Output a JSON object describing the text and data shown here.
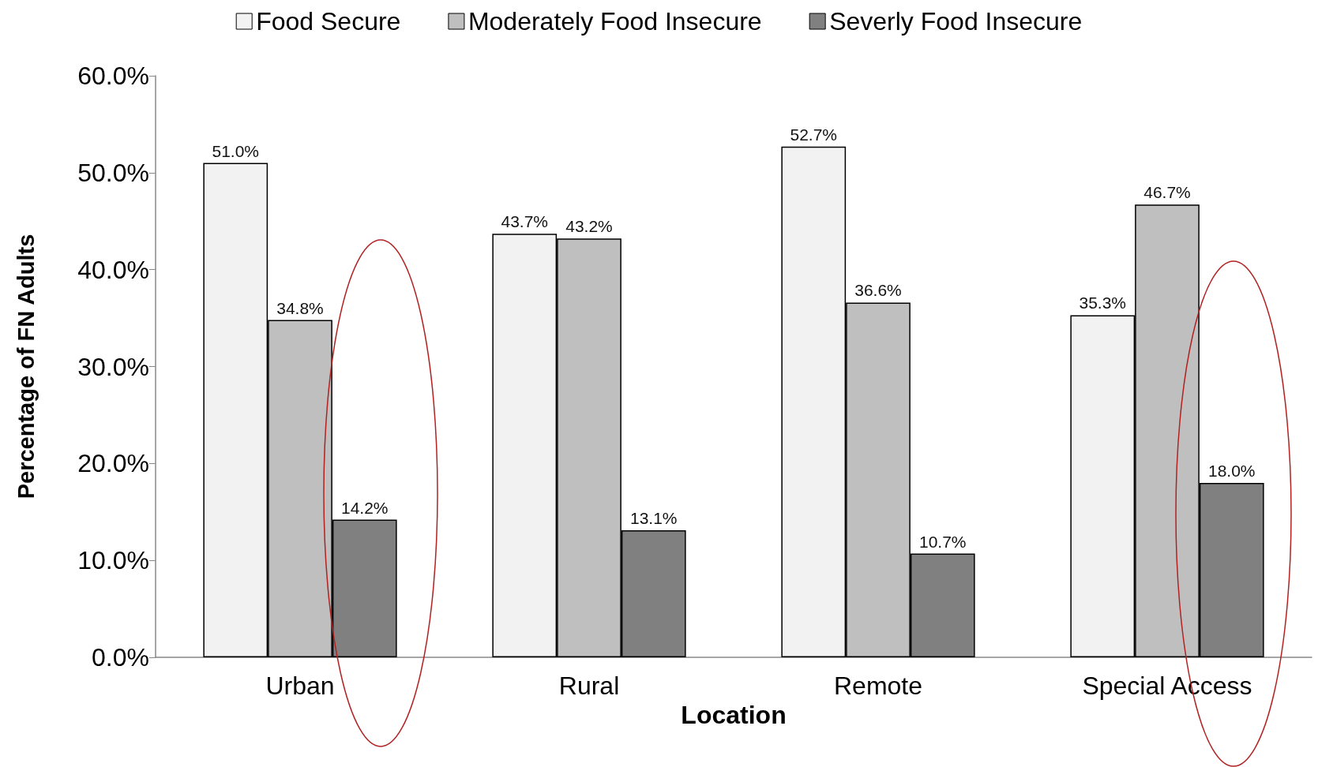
{
  "chart_data": {
    "type": "bar",
    "xlabel": "Location",
    "ylabel": "Percentage of FN Adults",
    "categories": [
      "Urban",
      "Rural",
      "Remote",
      "Special Access"
    ],
    "series": [
      {
        "name": "Food Secure",
        "color": "#f2f2f2",
        "values": [
          51.0,
          43.7,
          52.7,
          35.3
        ],
        "value_labels": [
          "51.0%",
          "43.7%",
          "52.7%",
          "35.3%"
        ]
      },
      {
        "name": "Moderately Food Insecure",
        "color": "#bfbfbf",
        "values": [
          34.8,
          43.2,
          36.6,
          46.7
        ],
        "value_labels": [
          "34.8%",
          "43.2%",
          "36.6%",
          "46.7%"
        ]
      },
      {
        "name": "Severly Food Insecure",
        "color": "#808080",
        "values": [
          14.2,
          13.1,
          10.7,
          18.0
        ],
        "value_labels": [
          "14.2%",
          "13.1%",
          "10.7%",
          "18.0%"
        ]
      }
    ],
    "ylim": [
      0,
      60
    ],
    "yticks": [
      {
        "value": 0,
        "label": "0.0%"
      },
      {
        "value": 10,
        "label": "10.0%"
      },
      {
        "value": 20,
        "label": "20.0%"
      },
      {
        "value": 30,
        "label": "30.0%"
      },
      {
        "value": 40,
        "label": "40.0%"
      },
      {
        "value": 50,
        "label": "50.0%"
      },
      {
        "value": 60,
        "label": "60.0%"
      }
    ],
    "grid": false,
    "legend": "top"
  }
}
